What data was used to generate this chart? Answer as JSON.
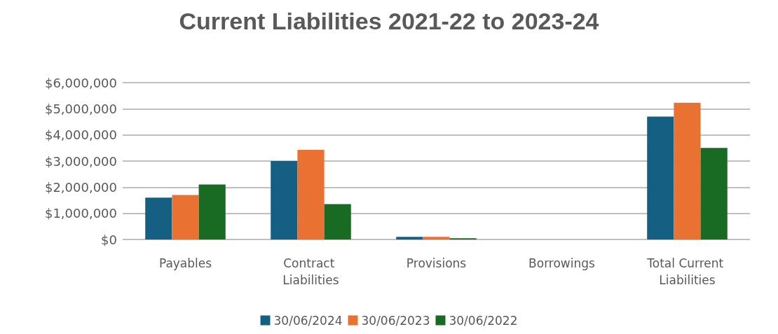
{
  "chart_data": {
    "type": "bar",
    "title": "Current Liabilities 2021-22 to 2023-24",
    "categories": [
      "Payables",
      "Contract Liabilities",
      "Provisions",
      "Borrowings",
      "Total Current Liabilities"
    ],
    "series": [
      {
        "name": "30/06/2024",
        "color": "#156082",
        "values": [
          1600000,
          3000000,
          100000,
          0,
          4700000
        ]
      },
      {
        "name": "30/06/2023",
        "color": "#e97132",
        "values": [
          1700000,
          3430000,
          100000,
          0,
          5230000
        ]
      },
      {
        "name": "30/06/2022",
        "color": "#196b24",
        "values": [
          2100000,
          1350000,
          50000,
          0,
          3500000
        ]
      }
    ],
    "ylim": [
      0,
      6000000
    ],
    "yticks": [
      {
        "value": 0,
        "label": "$0"
      },
      {
        "value": 1000000,
        "label": "$1,000,000"
      },
      {
        "value": 2000000,
        "label": "$2,000,000"
      },
      {
        "value": 3000000,
        "label": "$3,000,000"
      },
      {
        "value": 4000000,
        "label": "$4,000,000"
      },
      {
        "value": 5000000,
        "label": "$5,000,000"
      },
      {
        "value": 6000000,
        "label": "$6,000,000"
      }
    ],
    "grid": "y",
    "legend": "bottom"
  }
}
